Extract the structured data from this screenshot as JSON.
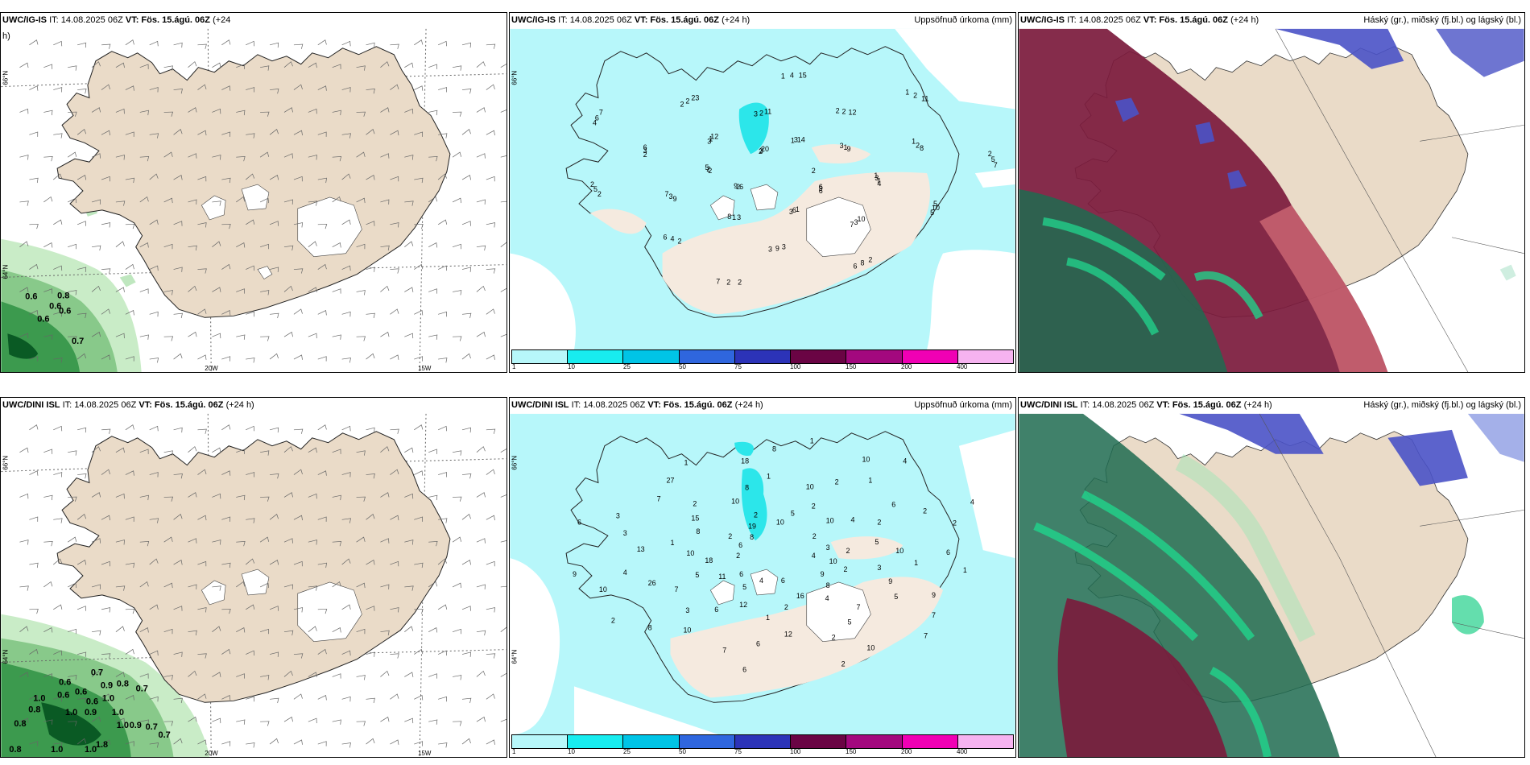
{
  "colors": {
    "land": "#eadbc8",
    "precip_land": "#f5eadf",
    "glacier": "#ffffff",
    "precip_light": "#b7f7fa",
    "precip_10": "#2ce6ea",
    "cloud_high": "#7b1a3c",
    "cloud_mid": "#1aa66f",
    "cloud_low": "#4a52c6"
  },
  "ig": {
    "wind_title": {
      "model": "UWC/IG-IS",
      "rest": "IT: 14.08.2025 06Z",
      "vt": "VT: Fös. 15.ágú. 06Z",
      "lead": "(+24"
    },
    "wind_title_wrap": "h)",
    "precip_title": {
      "model": "UWC/IG-IS",
      "rest": "IT: 14.08.2025 06Z",
      "vt": "VT: Fös. 15.ágú. 06Z",
      "lead": "(+24 h)",
      "right": "Uppsöfnuð úrkoma (mm)"
    },
    "cloud_title": {
      "model": "UWC/IG-IS",
      "rest": "IT: 14.08.2025 06Z",
      "vt": "VT: Fös. 15.ágú. 06Z",
      "lead": "(+24 h)",
      "right": "Háský (gr.), miðský (fj.bl.) og lágský (bl.)"
    },
    "gust_labels": [
      "0.6",
      "0.8",
      "0.6",
      "0.6",
      "0.6",
      "0.7"
    ],
    "precip_labels": [
      "2",
      "4",
      "5",
      "6",
      "7",
      "6",
      "3",
      "3",
      "7",
      "8",
      "6",
      "9",
      "7",
      "2",
      "5",
      "6",
      "7",
      "12",
      "23",
      "20",
      "11",
      "15",
      "14",
      "12",
      "11",
      "9",
      "8",
      "7",
      "7",
      "10",
      "9",
      "3",
      "8",
      "6",
      "9",
      "2",
      "1",
      "4",
      "2",
      "3",
      "5",
      "2",
      "3",
      "6",
      "1",
      "2",
      "3",
      "2",
      "4",
      "3",
      "2",
      "2",
      "1",
      "2",
      "5",
      "3",
      "5",
      "6",
      "10",
      "2",
      "1",
      "3",
      "2",
      "3",
      "2",
      "6",
      "9",
      "2",
      "2",
      "2",
      "4",
      "3",
      "2",
      "2",
      "3",
      "1",
      "1",
      "2",
      "1",
      "3",
      "1",
      "2",
      "1"
    ]
  },
  "dini": {
    "wind_title": {
      "model": "UWC/DINI ISL",
      "rest": "IT: 14.08.2025 06Z",
      "vt": "VT: Fös. 15.ágú. 06Z",
      "lead": "(+24 h)"
    },
    "precip_title": {
      "model": "UWC/DINI ISL",
      "rest": "IT: 14.08.2025 06Z",
      "vt": "VT: Fös. 15.ágú. 06Z",
      "lead": "(+24 h)",
      "right": "Uppsöfnuð úrkoma (mm)"
    },
    "cloud_title": {
      "model": "UWC/DINI ISL",
      "rest": "IT: 14.08.2025 06Z",
      "vt": "VT: Fös. 15.ágú. 06Z",
      "lead": "(+24 h)",
      "right": "Háský (gr.), miðský (fj.bl.) og lágský (bl.)"
    },
    "gust_labels": [
      "0.6",
      "0.7",
      "0.6",
      "0.9",
      "0.8",
      "0.7",
      "0.6",
      "1.0",
      "0.8",
      "0.6",
      "1.0",
      "0.9",
      "0.8",
      "1.0",
      "1.0",
      "1.0",
      "0.9",
      "0.7",
      "0.7",
      "1.0",
      "1.8",
      "1.0",
      "0.8"
    ],
    "precip_labels": [
      "4",
      "3",
      "9",
      "9",
      "7",
      "10",
      "16",
      "12",
      "6",
      "12",
      "10",
      "6",
      "7",
      "10",
      "18",
      "13",
      "6",
      "8",
      "7",
      "8",
      "10",
      "18",
      "10",
      "10",
      "10",
      "10",
      "6",
      "4",
      "5",
      "6",
      "10",
      "9",
      "7",
      "8",
      "5",
      "2",
      "2",
      "6",
      "4",
      "6",
      "8",
      "11",
      "26",
      "9",
      "10",
      "3",
      "6",
      "15",
      "27",
      "19",
      "8",
      "8",
      "5",
      "2",
      "4",
      "4",
      "2",
      "3",
      "10",
      "1",
      "2",
      "5",
      "7",
      "4",
      "2",
      "6",
      "1",
      "7",
      "5",
      "3",
      "2",
      "5",
      "4",
      "2",
      "1",
      "3",
      "2",
      "2",
      "1",
      "2",
      "1",
      "1",
      "2",
      "1",
      "2",
      "2",
      "2",
      "2",
      "1"
    ]
  },
  "axes": {
    "lat_66": "66°N",
    "lat_64": "64°N",
    "lon_20": "20W",
    "lon_15": "15W"
  },
  "precip_legend": {
    "ticks": [
      "1",
      "10",
      "25",
      "50",
      "75",
      "100",
      "150",
      "200",
      "400"
    ],
    "colors": [
      "#b7f7fa",
      "#18ecef",
      "#00c4e6",
      "#2f66de",
      "#2c33b8",
      "#6a0444",
      "#a3087e",
      "#f000b4",
      "#f6b3f0"
    ]
  }
}
